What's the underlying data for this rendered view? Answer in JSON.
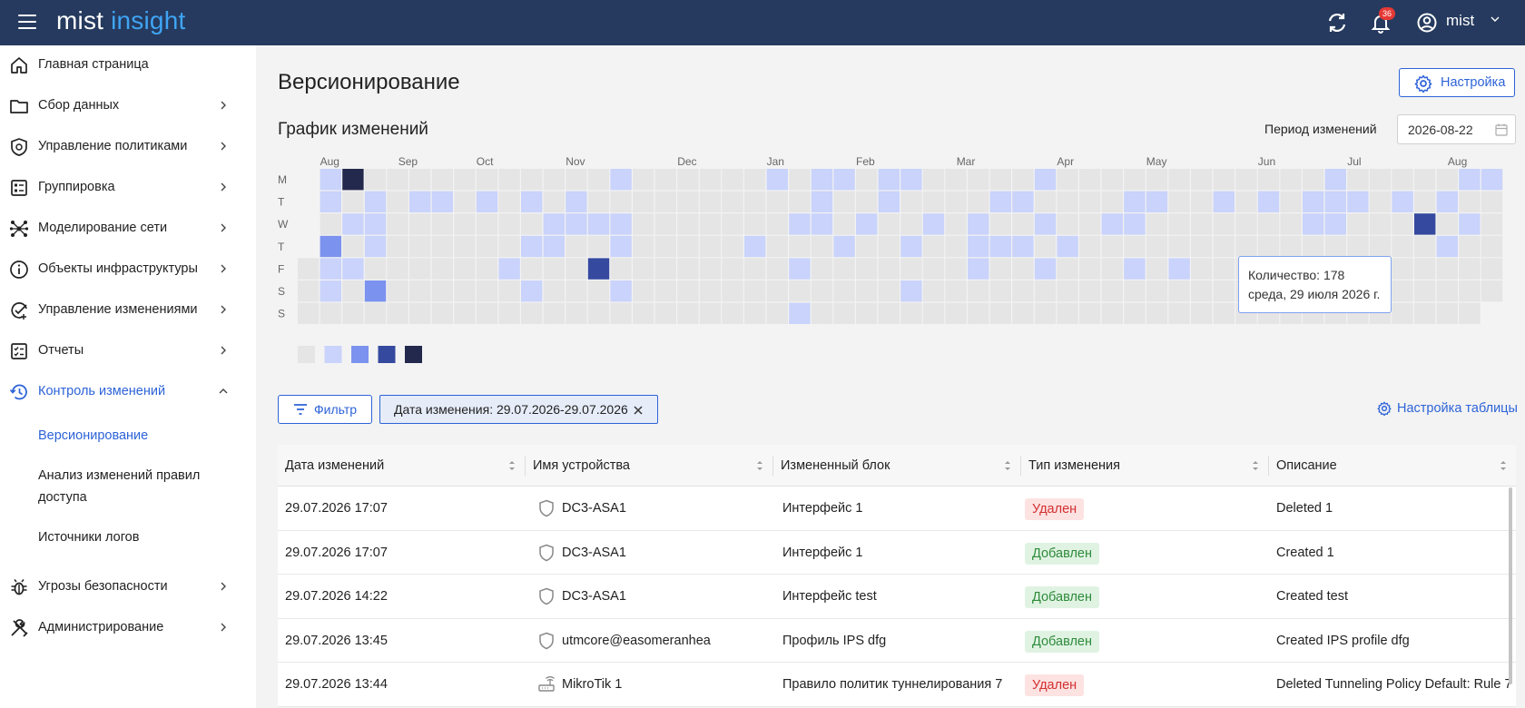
{
  "header": {
    "logo_part1": "mist",
    "logo_part2": "insight",
    "notifications_count": "36",
    "user_name": "mist"
  },
  "sidebar": {
    "items": [
      {
        "label": "Главная страница",
        "icon": "home-icon"
      },
      {
        "label": "Сбор данных",
        "icon": "folder-icon"
      },
      {
        "label": "Управление политиками",
        "icon": "shield-icon"
      },
      {
        "label": "Группировка",
        "icon": "grouping-icon"
      },
      {
        "label": "Моделирование сети",
        "icon": "network-icon"
      },
      {
        "label": "Объекты инфраструктуры",
        "icon": "info-icon"
      },
      {
        "label": "Управление изменениями",
        "icon": "change-check-icon"
      },
      {
        "label": "Отчеты",
        "icon": "report-icon"
      },
      {
        "label": "Контроль изменений",
        "icon": "history-icon"
      },
      {
        "label": "Угрозы безопасности",
        "icon": "bug-icon"
      },
      {
        "label": "Администрирование",
        "icon": "tools-icon"
      }
    ],
    "subitems": [
      "Версионирование",
      "Анализ изменений правил доступа",
      "Источники логов"
    ]
  },
  "page": {
    "title": "Версионирование",
    "settings_button": "Настройка",
    "chart_title": "График изменений",
    "period_label": "Период изменений",
    "period_value": "2026-08-22"
  },
  "tooltip": {
    "line1": "Количество: 178",
    "line2": "среда, 29 июля 2026 г."
  },
  "filter": {
    "button": "Фильтр",
    "chip": "Дата изменения: 29.07.2026-29.07.2026",
    "table_settings": "Настройка таблицы"
  },
  "table": {
    "columns": [
      "Дата изменений",
      "Имя устройства",
      "Измененный блок",
      "Тип изменения",
      "Описание"
    ],
    "rows": [
      {
        "date": "29.07.2026 17:07",
        "device": "DC3-ASA1",
        "device_icon": "shield-icon",
        "block": "Интерфейс 1",
        "type": "Удален",
        "kind": "del",
        "description": "Deleted 1"
      },
      {
        "date": "29.07.2026 17:07",
        "device": "DC3-ASA1",
        "device_icon": "shield-icon",
        "block": "Интерфейс 1",
        "type": "Добавлен",
        "kind": "add",
        "description": "Created 1"
      },
      {
        "date": "29.07.2026 14:22",
        "device": "DC3-ASA1",
        "device_icon": "shield-icon",
        "block": "Интерфейс test",
        "type": "Добавлен",
        "kind": "add",
        "description": "Created test"
      },
      {
        "date": "29.07.2026 13:45",
        "device": "utmcore@easomeranhea",
        "device_icon": "shield-icon",
        "block": "Профиль IPS dfg",
        "type": "Добавлен",
        "kind": "add",
        "description": "Created IPS profile dfg"
      },
      {
        "date": "29.07.2026 13:44",
        "device": "MikroTik 1",
        "device_icon": "router-icon",
        "block": "Правило политик туннелирования 7",
        "type": "Удален",
        "kind": "del",
        "description": "Deleted Tunneling Policy Default: Rule 7"
      }
    ]
  },
  "heatmap": {
    "months": [
      "Aug",
      "Sep",
      "Oct",
      "Nov",
      "Dec",
      "Jan",
      "Feb",
      "Mar",
      "Apr",
      "May",
      "Jun",
      "Jul",
      "Aug"
    ],
    "month_week_index": [
      1,
      4.5,
      8,
      12,
      17,
      21,
      25,
      29.5,
      34,
      38,
      43,
      47,
      51.5
    ],
    "days": [
      "M",
      "T",
      "W",
      "T",
      "F",
      "S",
      "S"
    ],
    "legend_levels": 5,
    "colors": [
      "#e5e5e5",
      "#c9d3fb",
      "#7b92ee",
      "#35499f",
      "#23294d"
    ],
    "weeks": 54,
    "first_week_start_row": 4,
    "last_week_end_row": 5,
    "active_cells": [
      [
        1,
        0,
        1
      ],
      [
        1,
        1,
        1
      ],
      [
        1,
        3,
        2
      ],
      [
        1,
        4,
        1
      ],
      [
        1,
        5,
        1
      ],
      [
        2,
        0,
        4
      ],
      [
        2,
        2,
        1
      ],
      [
        2,
        4,
        1
      ],
      [
        3,
        1,
        1
      ],
      [
        3,
        2,
        1
      ],
      [
        3,
        3,
        1
      ],
      [
        3,
        5,
        2
      ],
      [
        5,
        1,
        1
      ],
      [
        6,
        1,
        1
      ],
      [
        8,
        1,
        1
      ],
      [
        9,
        4,
        1
      ],
      [
        10,
        1,
        1
      ],
      [
        10,
        3,
        1
      ],
      [
        10,
        5,
        1
      ],
      [
        11,
        2,
        1
      ],
      [
        11,
        3,
        1
      ],
      [
        12,
        1,
        1
      ],
      [
        12,
        2,
        1
      ],
      [
        13,
        2,
        1
      ],
      [
        13,
        4,
        3
      ],
      [
        14,
        0,
        1
      ],
      [
        14,
        2,
        1
      ],
      [
        14,
        3,
        1
      ],
      [
        14,
        5,
        1
      ],
      [
        20,
        3,
        1
      ],
      [
        21,
        0,
        1
      ],
      [
        22,
        2,
        1
      ],
      [
        22,
        4,
        1
      ],
      [
        22,
        6,
        1
      ],
      [
        23,
        0,
        1
      ],
      [
        23,
        1,
        1
      ],
      [
        23,
        2,
        1
      ],
      [
        24,
        0,
        1
      ],
      [
        24,
        3,
        1
      ],
      [
        25,
        2,
        1
      ],
      [
        26,
        0,
        1
      ],
      [
        26,
        1,
        1
      ],
      [
        27,
        0,
        1
      ],
      [
        27,
        3,
        1
      ],
      [
        27,
        5,
        1
      ],
      [
        28,
        2,
        1
      ],
      [
        30,
        2,
        1
      ],
      [
        30,
        3,
        1
      ],
      [
        30,
        4,
        1
      ],
      [
        31,
        1,
        1
      ],
      [
        31,
        3,
        1
      ],
      [
        32,
        1,
        1
      ],
      [
        32,
        3,
        1
      ],
      [
        33,
        0,
        1
      ],
      [
        33,
        2,
        1
      ],
      [
        33,
        4,
        1
      ],
      [
        34,
        3,
        1
      ],
      [
        36,
        2,
        1
      ],
      [
        37,
        1,
        1
      ],
      [
        37,
        2,
        1
      ],
      [
        37,
        4,
        1
      ],
      [
        38,
        1,
        1
      ],
      [
        39,
        4,
        1
      ],
      [
        41,
        1,
        1
      ],
      [
        43,
        1,
        1
      ],
      [
        45,
        1,
        1
      ],
      [
        45,
        2,
        1
      ],
      [
        46,
        0,
        1
      ],
      [
        46,
        1,
        1
      ],
      [
        46,
        2,
        1
      ],
      [
        47,
        1,
        1
      ],
      [
        49,
        1,
        1
      ],
      [
        50,
        2,
        3
      ],
      [
        51,
        1,
        1
      ],
      [
        51,
        3,
        1
      ],
      [
        52,
        0,
        1
      ],
      [
        52,
        2,
        1
      ],
      [
        53,
        0,
        1
      ]
    ]
  }
}
